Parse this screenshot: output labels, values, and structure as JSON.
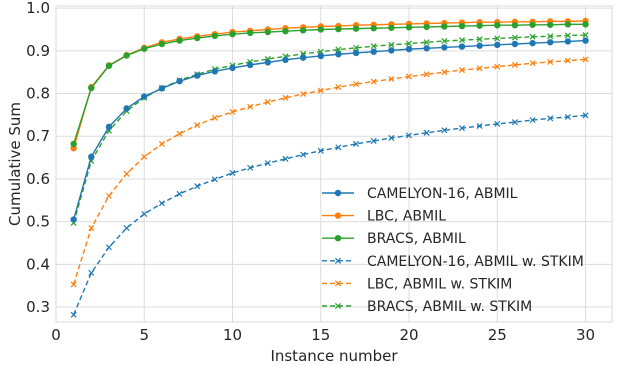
{
  "chart_data": {
    "type": "line",
    "xlabel": "Instance number",
    "ylabel": "Cumulative Sum",
    "xlim": [
      0,
      31.5
    ],
    "ylim": [
      0.265,
      1.005
    ],
    "xticks": [
      0,
      5,
      10,
      15,
      20,
      25,
      30
    ],
    "yticks": [
      0.3,
      0.4,
      0.5,
      0.6,
      0.7,
      0.8,
      0.9,
      1.0
    ],
    "xtick_labels": [
      "0",
      "5",
      "10",
      "15",
      "20",
      "25",
      "30"
    ],
    "ytick_labels": [
      "0.3",
      "0.4",
      "0.5",
      "0.6",
      "0.7",
      "0.8",
      "0.9",
      "1.0"
    ],
    "grid": true,
    "legend_position": "lower-right",
    "x": [
      1,
      2,
      3,
      4,
      5,
      6,
      7,
      8,
      9,
      10,
      11,
      12,
      13,
      14,
      15,
      16,
      17,
      18,
      19,
      20,
      21,
      22,
      23,
      24,
      25,
      26,
      27,
      28,
      29,
      30
    ],
    "series": [
      {
        "name": "CAMELYON-16, ABMIL",
        "color": "#1f77b4",
        "linestyle": "solid",
        "marker": "circle",
        "values": [
          0.505,
          0.652,
          0.722,
          0.765,
          0.793,
          0.812,
          0.829,
          0.842,
          0.852,
          0.86,
          0.867,
          0.873,
          0.879,
          0.884,
          0.888,
          0.892,
          0.895,
          0.898,
          0.901,
          0.904,
          0.906,
          0.908,
          0.91,
          0.912,
          0.914,
          0.916,
          0.918,
          0.92,
          0.922,
          0.924
        ]
      },
      {
        "name": "LBC, ABMIL",
        "color": "#ff7f0e",
        "linestyle": "solid",
        "marker": "circle",
        "values": [
          0.672,
          0.815,
          0.866,
          0.89,
          0.907,
          0.92,
          0.928,
          0.934,
          0.939,
          0.944,
          0.947,
          0.95,
          0.953,
          0.955,
          0.957,
          0.958,
          0.96,
          0.961,
          0.962,
          0.963,
          0.964,
          0.965,
          0.966,
          0.967,
          0.967,
          0.968,
          0.968,
          0.969,
          0.969,
          0.97
        ]
      },
      {
        "name": "BRACS, ABMIL",
        "color": "#2ca02c",
        "linestyle": "solid",
        "marker": "circle",
        "values": [
          0.682,
          0.813,
          0.865,
          0.889,
          0.905,
          0.916,
          0.924,
          0.93,
          0.935,
          0.939,
          0.942,
          0.944,
          0.946,
          0.948,
          0.95,
          0.951,
          0.952,
          0.953,
          0.954,
          0.955,
          0.956,
          0.957,
          0.958,
          0.959,
          0.96,
          0.96,
          0.961,
          0.961,
          0.962,
          0.962
        ]
      },
      {
        "name": "CAMELYON-16, ABMIL w. STKIM",
        "color": "#1f77b4",
        "linestyle": "dashed",
        "marker": "x",
        "values": [
          0.282,
          0.38,
          0.44,
          0.485,
          0.518,
          0.543,
          0.565,
          0.583,
          0.599,
          0.614,
          0.626,
          0.637,
          0.647,
          0.657,
          0.666,
          0.674,
          0.682,
          0.689,
          0.696,
          0.702,
          0.708,
          0.714,
          0.719,
          0.724,
          0.729,
          0.733,
          0.738,
          0.742,
          0.745,
          0.749
        ]
      },
      {
        "name": "LBC, ABMIL w. STKIM",
        "color": "#ff7f0e",
        "linestyle": "dashed",
        "marker": "x",
        "values": [
          0.353,
          0.485,
          0.56,
          0.612,
          0.652,
          0.682,
          0.706,
          0.726,
          0.743,
          0.757,
          0.769,
          0.78,
          0.79,
          0.799,
          0.807,
          0.815,
          0.822,
          0.828,
          0.834,
          0.84,
          0.845,
          0.85,
          0.855,
          0.859,
          0.863,
          0.867,
          0.871,
          0.874,
          0.877,
          0.88
        ]
      },
      {
        "name": "BRACS, ABMIL w. STKIM",
        "color": "#2ca02c",
        "linestyle": "dashed",
        "marker": "x",
        "values": [
          0.497,
          0.642,
          0.713,
          0.759,
          0.79,
          0.813,
          0.831,
          0.845,
          0.857,
          0.866,
          0.874,
          0.881,
          0.887,
          0.893,
          0.898,
          0.903,
          0.907,
          0.911,
          0.914,
          0.917,
          0.92,
          0.923,
          0.925,
          0.927,
          0.929,
          0.931,
          0.933,
          0.934,
          0.936,
          0.937
        ]
      }
    ]
  }
}
